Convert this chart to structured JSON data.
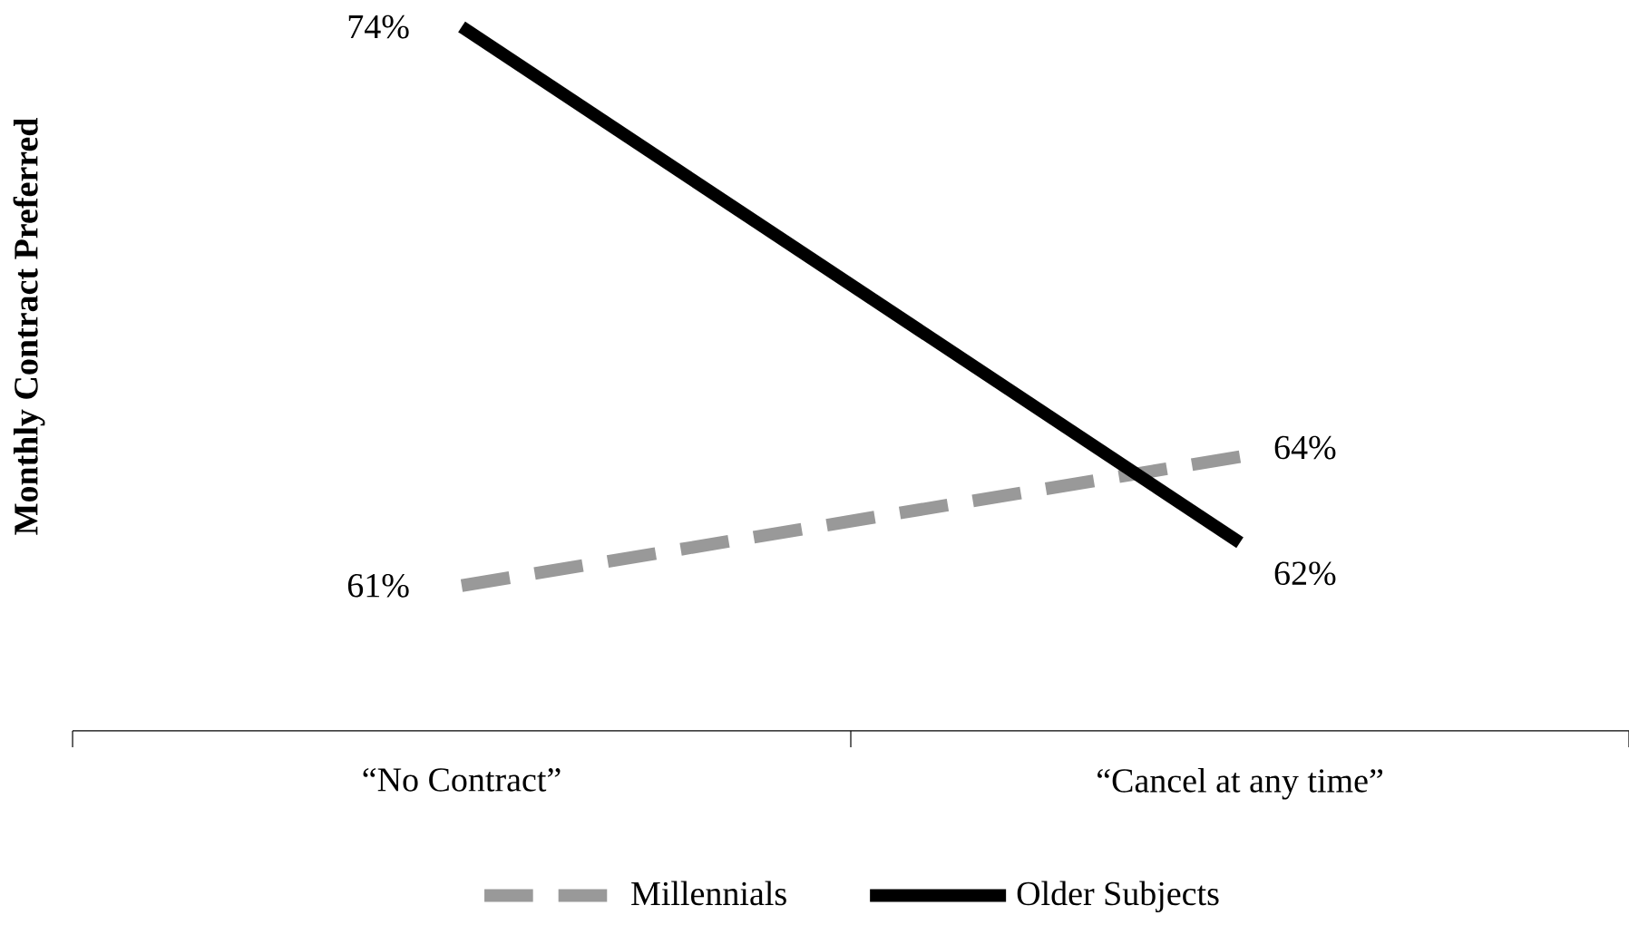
{
  "chart_data": {
    "type": "line",
    "ylabel": "Monthly Contract Preferred",
    "categories": [
      "“No Contract”",
      "“Cancel at any time”"
    ],
    "series": [
      {
        "name": "Millennials",
        "color": "#999999",
        "line_style": "dashed",
        "values": [
          61,
          64
        ],
        "value_labels": [
          "61%",
          "64%"
        ]
      },
      {
        "name": "Older Subjects",
        "color": "#000000",
        "line_style": "solid",
        "values": [
          74,
          62
        ],
        "value_labels": [
          "74%",
          "62%"
        ]
      }
    ],
    "legend": "bottom",
    "marker": "none",
    "grid": false
  }
}
